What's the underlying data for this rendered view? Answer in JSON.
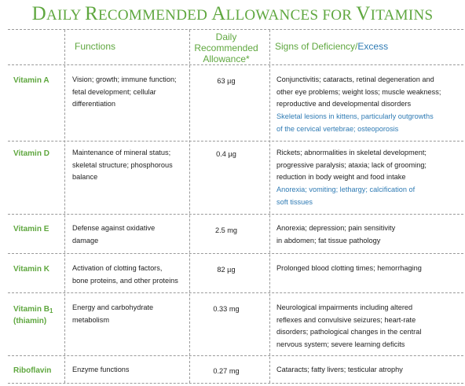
{
  "title": {
    "first_d": "D",
    "rest1": "AILY ",
    "first_r": "R",
    "rest2": "ECOMMENDED ",
    "first_a": "A",
    "rest3": "LLOWANCES FOR ",
    "first_v": "V",
    "rest4": "ITAMINS"
  },
  "headers": {
    "functions": "Functions",
    "allowance_line1": "Daily",
    "allowance_line2": "Recommended",
    "allowance_line3": "Allowance*",
    "signs_prefix": "Signs of Deficiency/",
    "signs_excess": "Excess"
  },
  "rows": [
    {
      "vitamin": "Vitamin A",
      "functions": [
        "Vision; growth; immune function;",
        "fetal development; cellular",
        "differentiation"
      ],
      "allowance": "63 µg",
      "deficiency": [
        "Conjunctivitis; cataracts, retinal degeneration and",
        "other eye problems; weight loss; muscle weakness;",
        "reproductive and developmental disorders"
      ],
      "excess": [
        "Skeletal lesions in kittens, particularly outgrowths",
        "of the cervical vertebrae; osteoporosis"
      ]
    },
    {
      "vitamin": "Vitamin D",
      "functions": [
        "Maintenance of mineral status;",
        "skeletal structure; phosphorous",
        "balance"
      ],
      "allowance": "0.4 µg",
      "deficiency": [
        "Rickets; abnormalities in skeletal development;",
        "progressive paralysis; ataxia; lack of grooming;",
        "reduction in body weight and food intake"
      ],
      "excess": [
        "Anorexia; vomiting; lethargy; calcification of",
        "soft tissues"
      ]
    },
    {
      "vitamin": "Vitamin E",
      "functions": [
        "Defense against oxidative",
        "damage"
      ],
      "allowance": "2.5 mg",
      "deficiency": [
        "Anorexia; depression; pain sensitivity",
        "in abdomen; fat tissue pathology"
      ],
      "excess": []
    },
    {
      "vitamin": "Vitamin K",
      "functions": [
        "Activation of clotting factors,",
        "bone proteins, and other proteins"
      ],
      "allowance": "82 µg",
      "deficiency": [
        "Prolonged blood clotting times; hemorrhaging"
      ],
      "excess": []
    },
    {
      "vitamin_main": "Vitamin B",
      "vitamin_sub": "1",
      "vitamin_line2": "(thiamin)",
      "functions": [
        "Energy and carbohydrate",
        "metabolism"
      ],
      "allowance": "0.33 mg",
      "deficiency": [
        "Neurological impairments including altered",
        "reflexes and convulsive seizures; heart-rate",
        "disorders; pathological changes in the central",
        "nervous system; severe learning deficits"
      ],
      "excess": []
    },
    {
      "vitamin": "Riboflavin",
      "functions": [
        "Enzyme functions"
      ],
      "allowance": "0.27 mg",
      "deficiency": [
        "Cataracts; fatty livers; testicular atrophy"
      ],
      "excess": []
    }
  ]
}
